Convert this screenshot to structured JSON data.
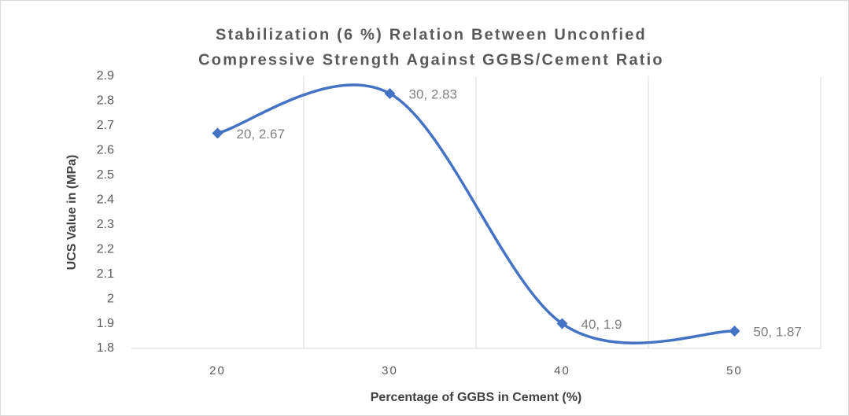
{
  "chart_data": {
    "type": "line",
    "title": [
      "Stabilization (6 %) Relation Between Unconfied",
      "Compressive Strength Against GGBS/Cement Ratio"
    ],
    "x_label": "Percentage of GGBS in Cement (%)",
    "y_label": "UCS Value in (MPa)",
    "categories": [
      "20",
      "30",
      "40",
      "50"
    ],
    "series": [
      {
        "name": "UCS",
        "color": "#4472c4",
        "values": [
          2.67,
          2.83,
          1.9,
          1.87
        ],
        "value_labels": [
          "20, 2.67",
          "30, 2.83",
          "40, 1.9",
          "50, 1.87"
        ]
      }
    ],
    "ylim": [
      1.8,
      2.9
    ],
    "yticks": [
      1.8,
      1.9,
      2,
      2.1,
      2.2,
      2.3,
      2.4,
      2.5,
      2.6,
      2.7,
      2.8,
      2.9
    ],
    "smooth": true,
    "grid": "x"
  }
}
